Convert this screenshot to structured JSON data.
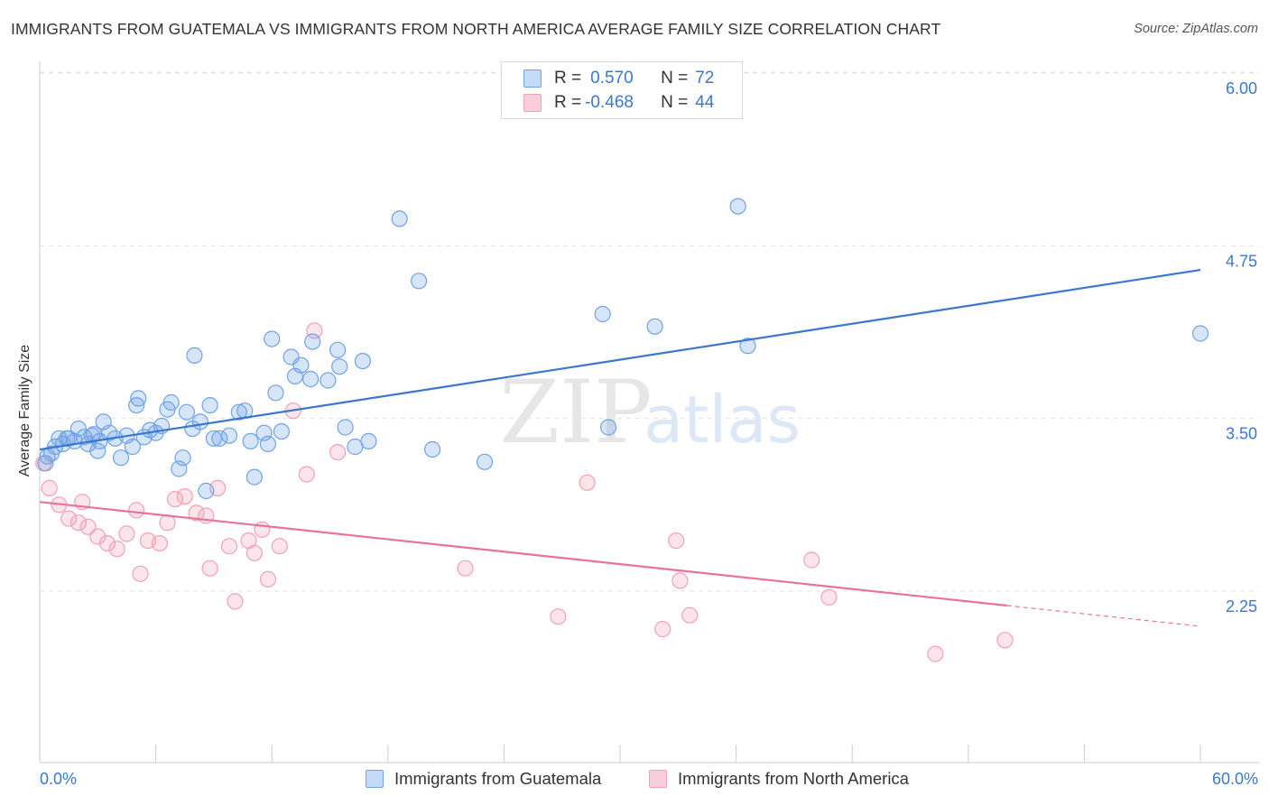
{
  "title": "IMMIGRANTS FROM GUATEMALA VS IMMIGRANTS FROM NORTH AMERICA AVERAGE FAMILY SIZE CORRELATION CHART",
  "source": "Source: ZipAtlas.com",
  "watermark": {
    "zip": "ZIP",
    "atlas": "atlas"
  },
  "legend": {
    "rows": [
      {
        "r_label": "R = ",
        "r_value": "0.570",
        "n_label": "N = ",
        "n_value": "72"
      },
      {
        "r_label": "R = ",
        "r_value": "-0.468",
        "n_label": "N = ",
        "n_value": "44"
      }
    ]
  },
  "chart_data": {
    "type": "scatter",
    "title": "IMMIGRANTS FROM GUATEMALA VS IMMIGRANTS FROM NORTH AMERICA AVERAGE FAMILY SIZE CORRELATION CHART",
    "xlabel": "",
    "ylabel": "Average Family Size",
    "xlim": [
      0,
      60
    ],
    "ylim": [
      1.0,
      6.2
    ],
    "x_tick_labels": [
      "0.0%",
      "60.0%"
    ],
    "y_ticks": [
      2.25,
      3.5,
      4.75,
      6.0
    ],
    "y_tick_labels": [
      "2.25",
      "3.50",
      "4.75",
      "6.00"
    ],
    "grid": true,
    "legend_position": "top-center",
    "colors": {
      "guatemala": "#6fa3e6",
      "north_america": "#f2a0b8",
      "line_blue": "#3a78d0",
      "line_pink": "#e8729a"
    },
    "series": [
      {
        "name": "Immigrants from Guatemala",
        "color": "#6fa3e6",
        "trend": {
          "x": [
            0,
            60
          ],
          "y": [
            3.38,
            4.68
          ]
        },
        "points": [
          [
            0.3,
            3.28
          ],
          [
            0.4,
            3.33
          ],
          [
            0.6,
            3.35
          ],
          [
            0.8,
            3.4
          ],
          [
            1.0,
            3.46
          ],
          [
            1.2,
            3.42
          ],
          [
            1.5,
            3.46
          ],
          [
            1.8,
            3.44
          ],
          [
            2.0,
            3.53
          ],
          [
            2.3,
            3.47
          ],
          [
            2.5,
            3.42
          ],
          [
            2.8,
            3.49
          ],
          [
            3.0,
            3.37
          ],
          [
            3.3,
            3.58
          ],
          [
            3.6,
            3.5
          ],
          [
            3.9,
            3.46
          ],
          [
            4.2,
            3.32
          ],
          [
            4.5,
            3.48
          ],
          [
            4.8,
            3.4
          ],
          [
            5.0,
            3.7
          ],
          [
            5.1,
            3.75
          ],
          [
            5.4,
            3.47
          ],
          [
            5.7,
            3.52
          ],
          [
            6.0,
            3.5
          ],
          [
            6.3,
            3.55
          ],
          [
            6.6,
            3.67
          ],
          [
            6.8,
            3.72
          ],
          [
            7.2,
            3.24
          ],
          [
            7.4,
            3.32
          ],
          [
            7.6,
            3.65
          ],
          [
            7.9,
            3.53
          ],
          [
            8.0,
            4.06
          ],
          [
            8.3,
            3.58
          ],
          [
            8.6,
            3.08
          ],
          [
            8.8,
            3.7
          ],
          [
            9.0,
            3.46
          ],
          [
            9.3,
            3.46
          ],
          [
            9.8,
            3.48
          ],
          [
            10.3,
            3.65
          ],
          [
            10.6,
            3.66
          ],
          [
            10.9,
            3.44
          ],
          [
            11.1,
            3.18
          ],
          [
            11.6,
            3.5
          ],
          [
            11.8,
            3.42
          ],
          [
            12.0,
            4.18
          ],
          [
            12.2,
            3.79
          ],
          [
            12.5,
            3.51
          ],
          [
            13.0,
            4.05
          ],
          [
            13.2,
            3.91
          ],
          [
            13.5,
            3.99
          ],
          [
            14.0,
            3.89
          ],
          [
            14.1,
            4.16
          ],
          [
            14.9,
            3.88
          ],
          [
            15.4,
            4.1
          ],
          [
            15.5,
            3.98
          ],
          [
            15.8,
            3.54
          ],
          [
            16.3,
            3.4
          ],
          [
            16.7,
            4.02
          ],
          [
            17.0,
            3.44
          ],
          [
            18.6,
            5.05
          ],
          [
            19.6,
            4.6
          ],
          [
            20.3,
            3.38
          ],
          [
            23.0,
            3.29
          ],
          [
            29.1,
            4.36
          ],
          [
            29.4,
            3.54
          ],
          [
            31.8,
            4.27
          ],
          [
            36.1,
            5.14
          ],
          [
            36.6,
            4.13
          ],
          [
            60.0,
            4.22
          ],
          [
            3.1,
            3.44
          ],
          [
            1.4,
            3.46
          ],
          [
            2.7,
            3.48
          ]
        ]
      },
      {
        "name": "Immigrants from North America",
        "color": "#f2a0b8",
        "trend": {
          "x": [
            0,
            50
          ],
          "y": [
            3.0,
            2.25
          ]
        },
        "trend_dashed": {
          "x": [
            50,
            60
          ],
          "y": [
            2.25,
            2.1
          ]
        },
        "points": [
          [
            0.2,
            3.28
          ],
          [
            0.5,
            3.1
          ],
          [
            1.0,
            2.98
          ],
          [
            1.5,
            2.88
          ],
          [
            2.0,
            2.85
          ],
          [
            2.5,
            2.82
          ],
          [
            3.0,
            2.75
          ],
          [
            3.5,
            2.7
          ],
          [
            4.0,
            2.66
          ],
          [
            4.5,
            2.77
          ],
          [
            5.0,
            2.94
          ],
          [
            5.2,
            2.48
          ],
          [
            5.6,
            2.72
          ],
          [
            6.2,
            2.7
          ],
          [
            6.6,
            2.85
          ],
          [
            7.0,
            3.02
          ],
          [
            7.5,
            3.04
          ],
          [
            8.1,
            2.92
          ],
          [
            8.6,
            2.9
          ],
          [
            8.8,
            2.52
          ],
          [
            9.2,
            3.1
          ],
          [
            9.8,
            2.68
          ],
          [
            10.1,
            2.28
          ],
          [
            10.8,
            2.72
          ],
          [
            11.1,
            2.63
          ],
          [
            11.5,
            2.8
          ],
          [
            11.8,
            2.44
          ],
          [
            12.4,
            2.68
          ],
          [
            13.1,
            3.66
          ],
          [
            13.8,
            3.2
          ],
          [
            14.2,
            4.24
          ],
          [
            15.4,
            3.36
          ],
          [
            22.0,
            2.52
          ],
          [
            26.8,
            2.17
          ],
          [
            28.3,
            3.14
          ],
          [
            32.2,
            2.08
          ],
          [
            32.9,
            2.72
          ],
          [
            33.1,
            2.43
          ],
          [
            33.6,
            2.18
          ],
          [
            39.9,
            2.58
          ],
          [
            40.8,
            2.31
          ],
          [
            46.3,
            1.9
          ],
          [
            49.9,
            2.0
          ],
          [
            2.2,
            3.0
          ]
        ]
      }
    ]
  }
}
